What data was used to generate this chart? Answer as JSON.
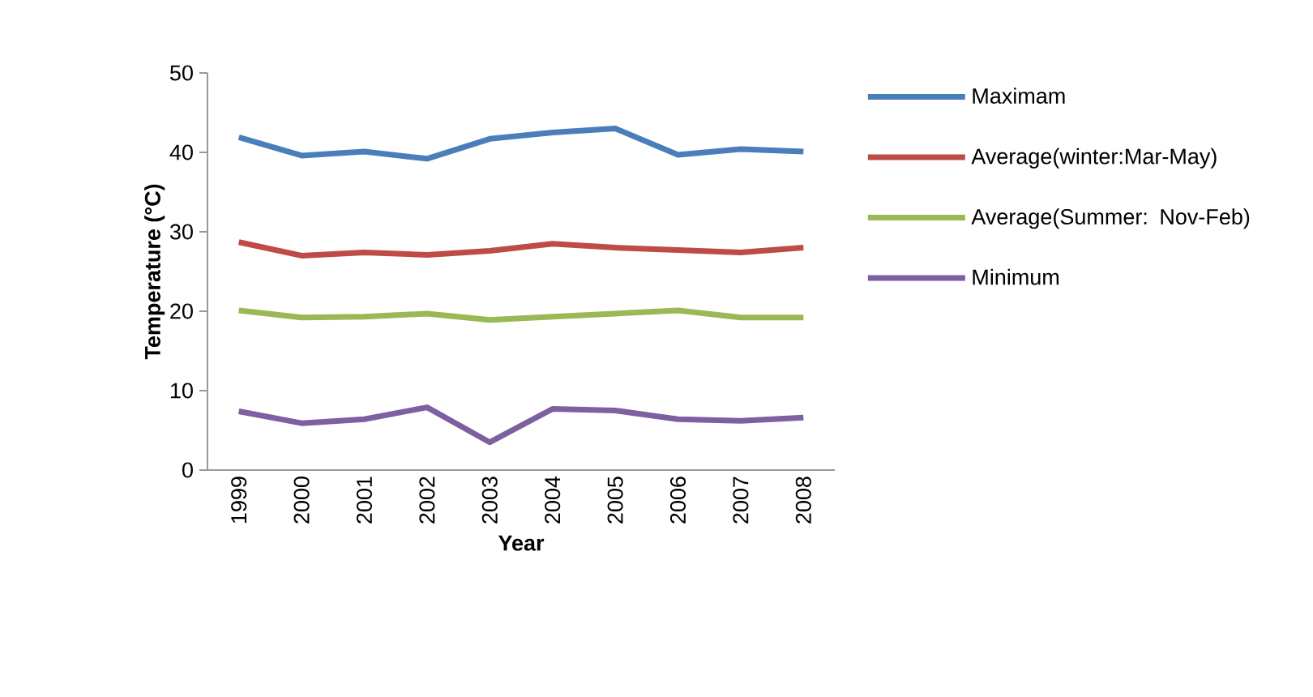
{
  "chart_data": {
    "type": "line",
    "xlabel": "Year",
    "ylabel": "Temperature (°C)",
    "categories": [
      "1999",
      "2000",
      "2001",
      "2002",
      "2003",
      "2004",
      "2005",
      "2006",
      "2007",
      "2008"
    ],
    "series": [
      {
        "name": "Maximam",
        "color": "#4a7ebb",
        "values": [
          41.9,
          39.6,
          40.1,
          39.2,
          41.7,
          42.5,
          43.0,
          39.7,
          40.4,
          40.1
        ]
      },
      {
        "name": "Average(winter:Mar-May)",
        "color": "#be4b48",
        "values": [
          28.7,
          27.0,
          27.4,
          27.1,
          27.6,
          28.5,
          28.0,
          27.7,
          27.4,
          28.0
        ]
      },
      {
        "name": "Average(Summer: Nov-Feb)",
        "color": "#98b954",
        "values": [
          20.1,
          19.2,
          19.3,
          19.7,
          18.9,
          19.3,
          19.7,
          20.1,
          19.2,
          19.2
        ]
      },
      {
        "name": "Minimum",
        "color": "#7d60a0",
        "values": [
          7.4,
          5.9,
          6.4,
          7.9,
          3.5,
          7.7,
          7.5,
          6.4,
          6.2,
          6.6
        ]
      }
    ],
    "ylim": [
      0,
      50
    ],
    "yticks": [
      0,
      10,
      20,
      30,
      40,
      50
    ],
    "legend": "right",
    "marker": "none",
    "line_style": "solid"
  }
}
